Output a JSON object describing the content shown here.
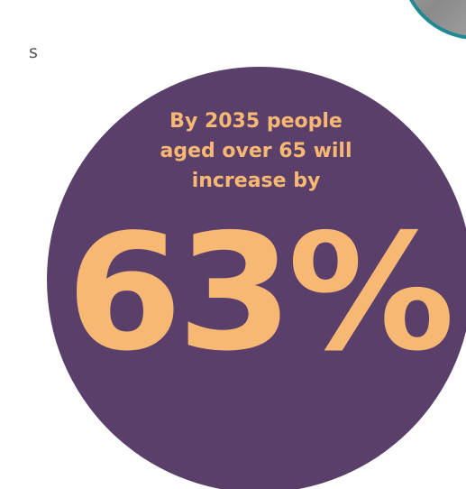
{
  "infographic": {
    "fragment_text": "s",
    "headline": [
      "By 2035 people",
      "aged over 65 will",
      "increase by"
    ],
    "statistic": "63%"
  }
}
